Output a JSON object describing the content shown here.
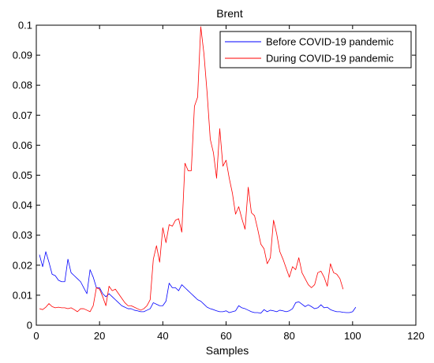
{
  "chart_data": {
    "type": "line",
    "title": "Brent",
    "xlabel": "Samples",
    "ylabel": "",
    "xlim": [
      0,
      120
    ],
    "ylim": [
      0,
      0.1
    ],
    "xticks": [
      0,
      20,
      40,
      60,
      80,
      100,
      120
    ],
    "yticks": [
      0,
      0.01,
      0.02,
      0.03,
      0.04,
      0.05,
      0.06,
      0.07,
      0.08,
      0.09,
      0.1
    ],
    "xtick_labels": [
      "0",
      "20",
      "40",
      "60",
      "80",
      "100",
      "120"
    ],
    "ytick_labels": [
      "0",
      "0.01",
      "0.02",
      "0.03",
      "0.04",
      "0.05",
      "0.06",
      "0.07",
      "0.08",
      "0.09",
      "0.1"
    ],
    "grid": false,
    "legend_position": "top-right",
    "series": [
      {
        "name": "Before COVID-19 pandemic",
        "color": "#0000ff",
        "x": [
          1,
          2,
          3,
          4,
          5,
          6,
          7,
          8,
          9,
          10,
          11,
          12,
          13,
          14,
          15,
          16,
          17,
          18,
          19,
          20,
          21,
          22,
          23,
          24,
          25,
          26,
          27,
          28,
          29,
          30,
          31,
          32,
          33,
          34,
          35,
          36,
          37,
          38,
          39,
          40,
          41,
          42,
          43,
          44,
          45,
          46,
          47,
          48,
          49,
          50,
          51,
          52,
          53,
          54,
          55,
          56,
          57,
          58,
          59,
          60,
          61,
          62,
          63,
          64,
          65,
          66,
          67,
          68,
          69,
          70,
          71,
          72,
          73,
          74,
          75,
          76,
          77,
          78,
          79,
          80,
          81,
          82,
          83,
          84,
          85,
          86,
          87,
          88,
          89,
          90,
          91,
          92,
          93,
          94,
          95,
          96,
          97,
          98,
          99,
          100,
          101
        ],
        "y": [
          0.0235,
          0.0195,
          0.0245,
          0.021,
          0.017,
          0.0165,
          0.015,
          0.0145,
          0.0145,
          0.022,
          0.0175,
          0.0165,
          0.0155,
          0.0145,
          0.0125,
          0.0105,
          0.0185,
          0.016,
          0.0125,
          0.0125,
          0.0105,
          0.0095,
          0.0105,
          0.0095,
          0.0085,
          0.0075,
          0.0065,
          0.006,
          0.0055,
          0.0055,
          0.005,
          0.0048,
          0.0045,
          0.0045,
          0.005,
          0.0055,
          0.0075,
          0.007,
          0.0065,
          0.0065,
          0.008,
          0.014,
          0.0125,
          0.0125,
          0.0115,
          0.0135,
          0.0125,
          0.0115,
          0.0105,
          0.0095,
          0.0085,
          0.008,
          0.007,
          0.006,
          0.0055,
          0.0052,
          0.0048,
          0.0045,
          0.0045,
          0.0048,
          0.0042,
          0.0045,
          0.0048,
          0.0065,
          0.0058,
          0.0055,
          0.005,
          0.0045,
          0.0042,
          0.0042,
          0.004,
          0.0052,
          0.0045,
          0.005,
          0.0048,
          0.0045,
          0.005,
          0.0048,
          0.0045,
          0.0048,
          0.0055,
          0.0075,
          0.0078,
          0.007,
          0.0062,
          0.0068,
          0.0062,
          0.0055,
          0.0058,
          0.0068,
          0.0058,
          0.006,
          0.0052,
          0.0048,
          0.0045,
          0.0045,
          0.0043,
          0.0042,
          0.0042,
          0.0045,
          0.006
        ]
      },
      {
        "name": "During COVID-19 pandemic",
        "color": "#ff0000",
        "x": [
          1,
          2,
          3,
          4,
          5,
          6,
          7,
          8,
          9,
          10,
          11,
          12,
          13,
          14,
          15,
          16,
          17,
          18,
          19,
          20,
          21,
          22,
          23,
          24,
          25,
          26,
          27,
          28,
          29,
          30,
          31,
          32,
          33,
          34,
          35,
          36,
          37,
          38,
          39,
          40,
          41,
          42,
          43,
          44,
          45,
          46,
          47,
          48,
          49,
          50,
          51,
          52,
          53,
          54,
          55,
          56,
          57,
          58,
          59,
          60,
          61,
          62,
          63,
          64,
          65,
          66,
          67,
          68,
          69,
          70,
          71,
          72,
          73,
          74,
          75,
          76,
          77,
          78,
          79,
          80,
          81,
          82,
          83,
          84,
          85,
          86,
          87,
          88,
          89,
          90,
          91,
          92,
          93,
          94,
          95,
          96,
          97
        ],
        "y": [
          0.0055,
          0.0052,
          0.006,
          0.0072,
          0.0062,
          0.0058,
          0.006,
          0.0058,
          0.0058,
          0.0055,
          0.0058,
          0.0052,
          0.0045,
          0.0055,
          0.0055,
          0.005,
          0.0045,
          0.0065,
          0.0125,
          0.012,
          0.0095,
          0.0065,
          0.013,
          0.0115,
          0.012,
          0.0105,
          0.009,
          0.0075,
          0.0065,
          0.0065,
          0.006,
          0.0055,
          0.005,
          0.0055,
          0.0065,
          0.0085,
          0.022,
          0.0265,
          0.021,
          0.0325,
          0.0275,
          0.0335,
          0.033,
          0.035,
          0.0355,
          0.031,
          0.054,
          0.0515,
          0.0515,
          0.073,
          0.076,
          0.0995,
          0.0905,
          0.0775,
          0.062,
          0.0575,
          0.049,
          0.0655,
          0.053,
          0.055,
          0.049,
          0.044,
          0.037,
          0.0395,
          0.0355,
          0.032,
          0.046,
          0.0375,
          0.0365,
          0.032,
          0.027,
          0.0255,
          0.0205,
          0.0225,
          0.035,
          0.0305,
          0.0245,
          0.022,
          0.019,
          0.016,
          0.0195,
          0.0185,
          0.0225,
          0.0175,
          0.0155,
          0.0135,
          0.0125,
          0.0135,
          0.0175,
          0.018,
          0.016,
          0.013,
          0.0205,
          0.0175,
          0.017,
          0.0155,
          0.012
        ]
      }
    ]
  }
}
